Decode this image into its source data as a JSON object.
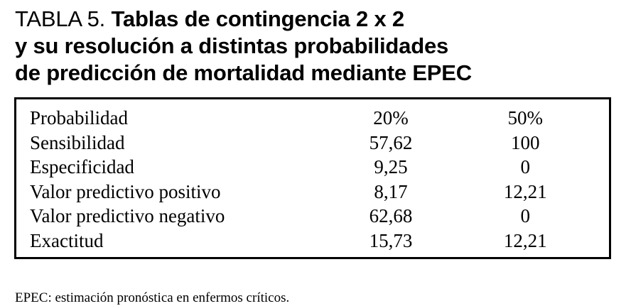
{
  "title": {
    "label": "TABLA 5.",
    "line1": "Tablas de contingencia 2 x 2",
    "line2": "y su resolución a distintas probabilidades",
    "line3": "de predicción de mortalidad mediante EPEC"
  },
  "table": {
    "rows": [
      [
        "Probabilidad",
        "20%",
        "50%"
      ],
      [
        "Sensibilidad",
        "57,62",
        "100"
      ],
      [
        "Especificidad",
        "9,25",
        "0"
      ],
      [
        "Valor predictivo positivo",
        "8,17",
        "12,21"
      ],
      [
        "Valor predictivo negativo",
        "62,68",
        "0"
      ],
      [
        "Exactitud",
        "15,73",
        "12,21"
      ]
    ]
  },
  "footnote": "EPEC: estimación pronóstica en enfermos críticos."
}
